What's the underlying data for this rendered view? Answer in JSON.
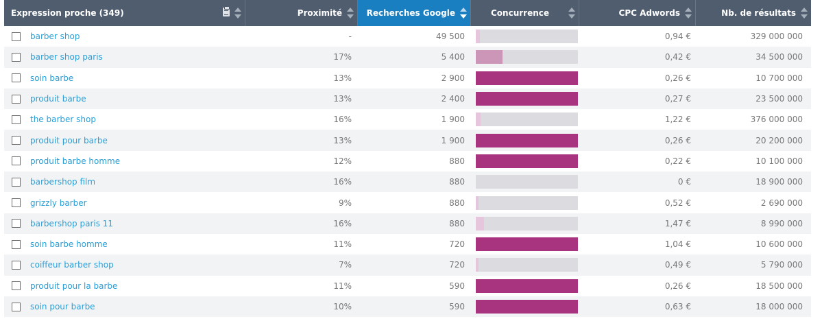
{
  "colors": {
    "header_bg": "#505d6e",
    "active_header_bg": "#1a7fc1",
    "keyword_link": "#2a9fd6",
    "bar_track": "#dcdce0",
    "competition_high": "#a8337f",
    "competition_medium": "#cc96b8",
    "competition_low": "#e6c6dc"
  },
  "table": {
    "headers": {
      "expression": "Expression proche (349)",
      "proximite": "Proximité",
      "recherches": "Recherches Google",
      "concurrence": "Concurrence",
      "cpc": "CPC Adwords",
      "resultats": "Nb. de résultats"
    },
    "rows": [
      {
        "keyword": "barber shop",
        "proximite": "-",
        "recherches": "49 500",
        "concurrence": 0.04,
        "cpc": "0,94 €",
        "resultats": "329 000 000"
      },
      {
        "keyword": "barber shop paris",
        "proximite": "17%",
        "recherches": "5 400",
        "concurrence": 0.26,
        "cpc": "0,42 €",
        "resultats": "34 500 000"
      },
      {
        "keyword": "soin barbe",
        "proximite": "13%",
        "recherches": "2 900",
        "concurrence": 1.0,
        "cpc": "0,26 €",
        "resultats": "10 700 000"
      },
      {
        "keyword": "produit barbe",
        "proximite": "13%",
        "recherches": "2 400",
        "concurrence": 1.0,
        "cpc": "0,27 €",
        "resultats": "23 500 000"
      },
      {
        "keyword": "the barber shop",
        "proximite": "16%",
        "recherches": "1 900",
        "concurrence": 0.05,
        "cpc": "1,22 €",
        "resultats": "376 000 000"
      },
      {
        "keyword": "produit pour barbe",
        "proximite": "13%",
        "recherches": "1 900",
        "concurrence": 1.0,
        "cpc": "0,26 €",
        "resultats": "20 200 000"
      },
      {
        "keyword": "produit barbe homme",
        "proximite": "12%",
        "recherches": "880",
        "concurrence": 1.0,
        "cpc": "0,22 €",
        "resultats": "10 100 000"
      },
      {
        "keyword": "barbershop film",
        "proximite": "16%",
        "recherches": "880",
        "concurrence": 0.0,
        "cpc": "0 €",
        "resultats": "18 900 000"
      },
      {
        "keyword": "grizzly barber",
        "proximite": "9%",
        "recherches": "880",
        "concurrence": 0.03,
        "cpc": "0,52 €",
        "resultats": "2 690 000"
      },
      {
        "keyword": "barbershop paris 11",
        "proximite": "16%",
        "recherches": "880",
        "concurrence": 0.08,
        "cpc": "1,47 €",
        "resultats": "8 990 000"
      },
      {
        "keyword": "soin barbe homme",
        "proximite": "11%",
        "recherches": "720",
        "concurrence": 1.0,
        "cpc": "1,04 €",
        "resultats": "10 600 000"
      },
      {
        "keyword": "coiffeur barber shop",
        "proximite": "7%",
        "recherches": "720",
        "concurrence": 0.03,
        "cpc": "0,49 €",
        "resultats": "5 790 000"
      },
      {
        "keyword": "produit pour la barbe",
        "proximite": "11%",
        "recherches": "590",
        "concurrence": 1.0,
        "cpc": "0,26 €",
        "resultats": "18 500 000"
      },
      {
        "keyword": "soin pour barbe",
        "proximite": "10%",
        "recherches": "590",
        "concurrence": 1.0,
        "cpc": "0,63 €",
        "resultats": "18 000 000"
      }
    ]
  }
}
